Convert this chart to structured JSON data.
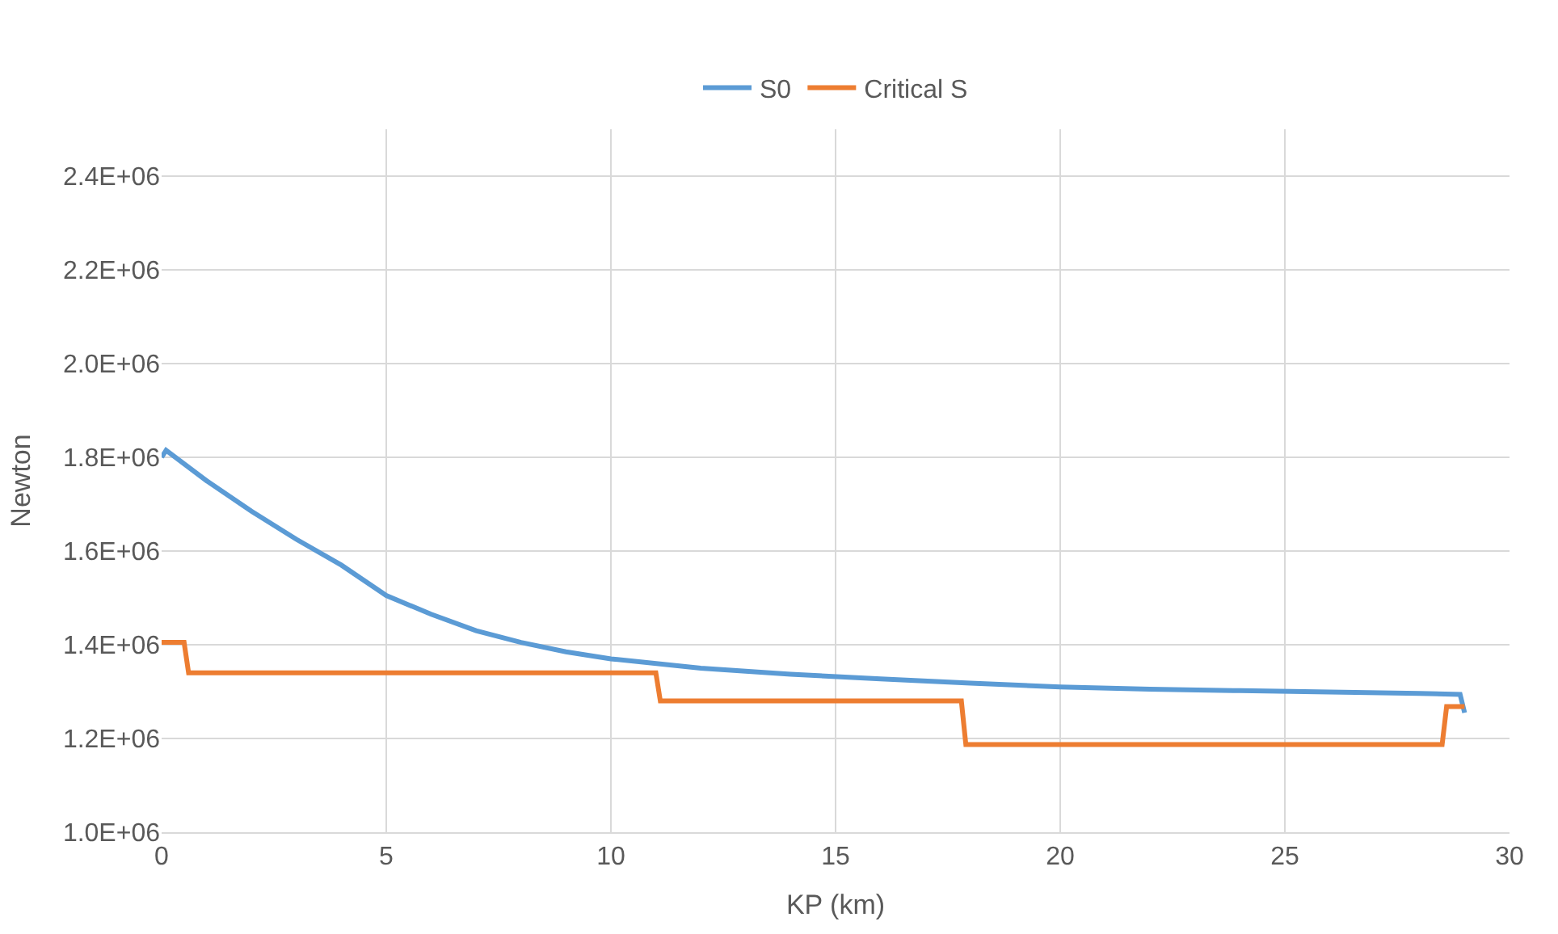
{
  "chart_data": {
    "type": "line",
    "xlabel": "KP (km)",
    "ylabel": "Newton",
    "xlim": [
      0,
      30
    ],
    "xticks": [
      0,
      5,
      10,
      15,
      20,
      25,
      30
    ],
    "ylim": [
      1000000,
      2500000
    ],
    "yticks": [
      {
        "value": 1000000,
        "label": "1.0E+06"
      },
      {
        "value": 1200000,
        "label": "1.2E+06"
      },
      {
        "value": 1400000,
        "label": "1.4E+06"
      },
      {
        "value": 1600000,
        "label": "1.6E+06"
      },
      {
        "value": 1800000,
        "label": "1.8E+06"
      },
      {
        "value": 2000000,
        "label": "2.0E+06"
      },
      {
        "value": 2200000,
        "label": "2.2E+06"
      },
      {
        "value": 2400000,
        "label": "2.4E+06"
      }
    ],
    "grid": true,
    "legend": "top",
    "marker": "none",
    "line_style": "solid",
    "series": [
      {
        "name": "S0",
        "color": "#5b9bd5",
        "x": [
          0,
          0.1,
          1,
          2,
          3,
          4,
          5,
          6,
          7,
          8,
          9,
          10,
          12,
          14,
          16,
          18,
          20,
          22,
          24,
          26,
          28,
          28.9,
          29
        ],
        "values": [
          1800000,
          1815000,
          1750000,
          1685000,
          1625000,
          1570000,
          1505000,
          1465000,
          1430000,
          1405000,
          1385000,
          1370000,
          1350000,
          1337000,
          1327000,
          1318000,
          1310000,
          1305000,
          1302000,
          1299000,
          1296000,
          1294000,
          1255000
        ]
      },
      {
        "name": "Critical S",
        "color": "#ed7d31",
        "x": [
          0,
          0.5,
          0.6,
          11.0,
          11.1,
          17.8,
          17.9,
          28.5,
          28.6,
          29
        ],
        "values": [
          1405000,
          1405000,
          1340000,
          1340000,
          1280000,
          1280000,
          1187000,
          1187000,
          1268000,
          1268000
        ]
      }
    ]
  }
}
